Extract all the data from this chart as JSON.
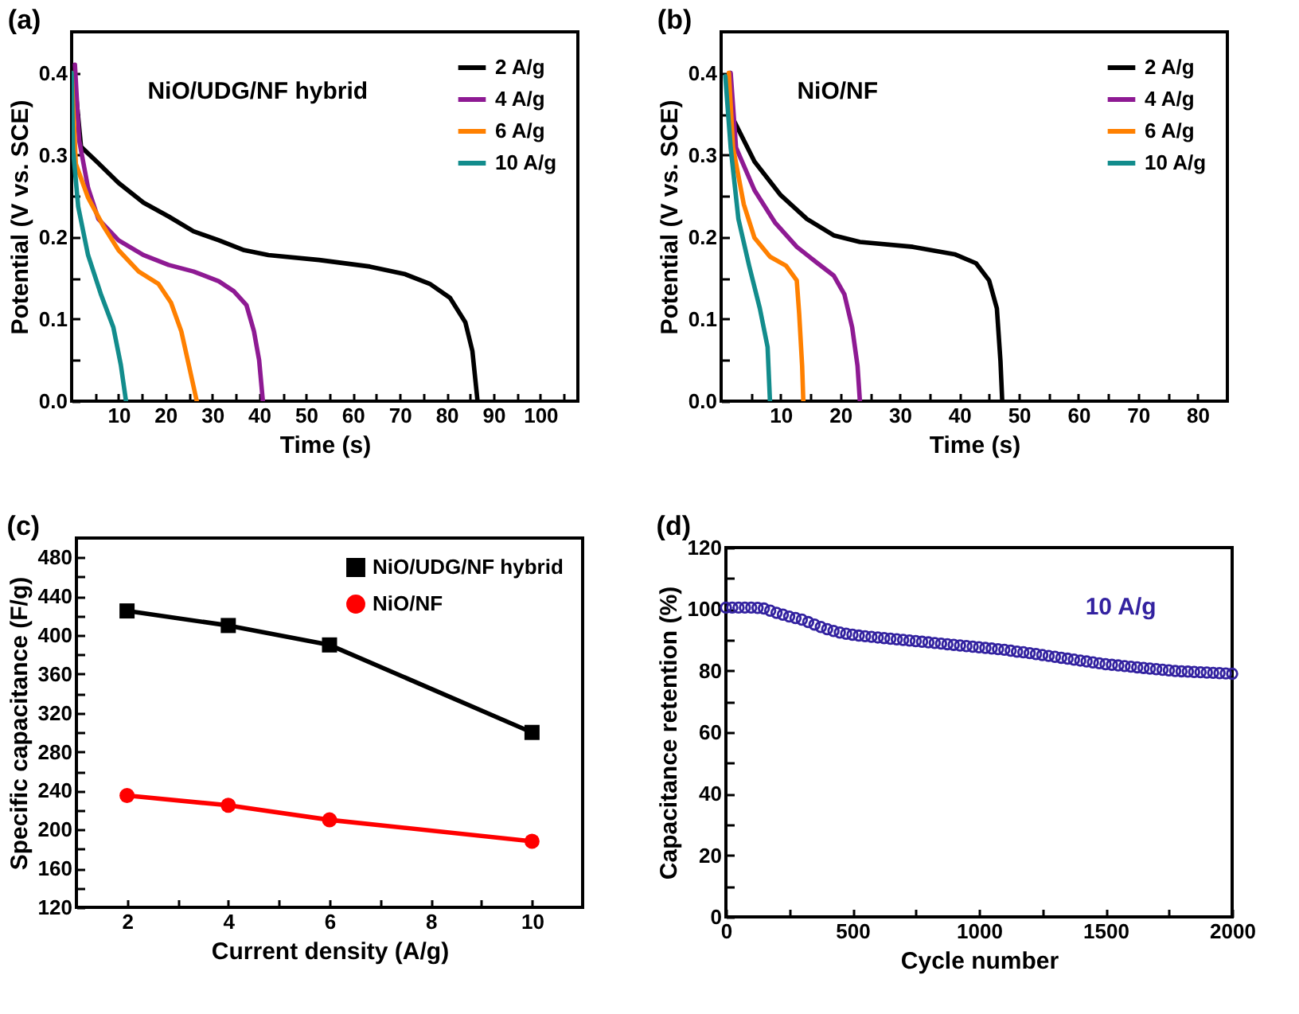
{
  "chart_data": [
    {
      "type": "line",
      "title": "(a)",
      "xlabel": "Time (s)",
      "ylabel": "Potential (V vs. SCE)",
      "xlim": [
        0,
        108
      ],
      "ylim": [
        0,
        0.45
      ],
      "xticks": [
        {
          "value": 5,
          "label": null
        },
        10,
        {
          "value": 15,
          "label": null
        },
        20,
        {
          "value": 25,
          "label": null
        },
        30,
        {
          "value": 35,
          "label": null
        },
        40,
        {
          "value": 45,
          "label": null
        },
        50,
        {
          "value": 55,
          "label": null
        },
        60,
        {
          "value": 65,
          "label": null
        },
        70,
        {
          "value": 75,
          "label": null
        },
        80,
        {
          "value": 85,
          "label": null
        },
        90,
        {
          "value": 95,
          "label": null
        },
        100,
        {
          "value": 105,
          "label": null
        }
      ],
      "yticks": [
        {
          "value": 0,
          "label": "0.0"
        },
        {
          "value": 0.05,
          "label": null
        },
        0.1,
        {
          "value": 0.15,
          "label": null
        },
        0.2,
        {
          "value": 0.25,
          "label": null
        },
        0.3,
        {
          "value": 0.35,
          "label": null
        },
        0.4
      ],
      "legend": "top right",
      "annotations": [
        "NiO/UDG/NF hybrid"
      ],
      "series": [
        {
          "name": "2 A/g",
          "color": "#000000",
          "x": [
            0.5,
            2,
            5.7,
            10,
            15.3,
            20.7,
            26,
            31.4,
            36.8,
            42,
            52.8,
            63.6,
            71,
            76.4,
            80.7,
            84,
            85.5,
            86.6
          ],
          "values": [
            0.4,
            0.31,
            0.29,
            0.266,
            0.242,
            0.225,
            0.207,
            0.196,
            0.184,
            0.178,
            0.172,
            0.164,
            0.155,
            0.143,
            0.126,
            0.096,
            0.061,
            0
          ]
        },
        {
          "name": "4 A/g",
          "color": "#8e1a93",
          "x": [
            0.7,
            1.6,
            3.5,
            5.7,
            10,
            15.3,
            20.7,
            26,
            31.4,
            34.6,
            37.3,
            38.9,
            40,
            40.8
          ],
          "values": [
            0.41,
            0.318,
            0.26,
            0.222,
            0.196,
            0.178,
            0.166,
            0.158,
            0.146,
            0.134,
            0.117,
            0.085,
            0.05,
            0
          ]
        },
        {
          "name": "6 A/g",
          "color": "#ff8000",
          "x": [
            0,
            0.9,
            3.5,
            6.8,
            10,
            14.3,
            18.5,
            21.2,
            23.4,
            25,
            26.7
          ],
          "values": [
            0.4,
            0.289,
            0.248,
            0.213,
            0.184,
            0.158,
            0.143,
            0.12,
            0.085,
            0.044,
            0
          ]
        },
        {
          "name": "10 A/g",
          "color": "#128c8c",
          "x": [
            0,
            0.3,
            1.4,
            3.5,
            6.2,
            8.9,
            10.5,
            11.6
          ],
          "values": [
            0.4,
            0.307,
            0.237,
            0.178,
            0.131,
            0.09,
            0.044,
            0
          ]
        }
      ]
    },
    {
      "type": "line",
      "title": "(b)",
      "xlabel": "Time (s)",
      "ylabel": "Potential (V vs. SCE)",
      "xlim": [
        0,
        85
      ],
      "ylim": [
        0,
        0.45
      ],
      "xticks": [
        {
          "value": 5,
          "label": null
        },
        10,
        {
          "value": 15,
          "label": null
        },
        20,
        {
          "value": 25,
          "label": null
        },
        30,
        {
          "value": 35,
          "label": null
        },
        40,
        {
          "value": 45,
          "label": null
        },
        50,
        {
          "value": 55,
          "label": null
        },
        60,
        {
          "value": 65,
          "label": null
        },
        70,
        {
          "value": 75,
          "label": null
        },
        80
      ],
      "yticks": [
        {
          "value": 0,
          "label": "0.0"
        },
        {
          "value": 0.05,
          "label": null
        },
        0.1,
        {
          "value": 0.15,
          "label": null
        },
        0.2,
        {
          "value": 0.25,
          "label": null
        },
        0.3,
        {
          "value": 0.35,
          "label": null
        },
        0.4
      ],
      "legend": "top right",
      "annotations": [
        "NiO/NF"
      ],
      "series": [
        {
          "name": "2 A/g",
          "color": "#000000",
          "x": [
            1.5,
            2,
            5.6,
            10,
            14.4,
            18.9,
            23.3,
            32.2,
            39.2,
            42.8,
            45,
            46.3,
            46.9,
            47.2
          ],
          "values": [
            0.4,
            0.344,
            0.292,
            0.251,
            0.222,
            0.202,
            0.194,
            0.188,
            0.179,
            0.168,
            0.147,
            0.113,
            0.049,
            0
          ]
        },
        {
          "name": "4 A/g",
          "color": "#8e1a93",
          "x": [
            1.6,
            2.5,
            5.6,
            9.1,
            12.7,
            16.2,
            18.9,
            20.7,
            22,
            22.9,
            23.3
          ],
          "values": [
            0.4,
            0.309,
            0.257,
            0.217,
            0.188,
            0.168,
            0.153,
            0.13,
            0.09,
            0.043,
            0
          ]
        },
        {
          "name": "6 A/g",
          "color": "#ff8000",
          "x": [
            1.3,
            2,
            3.8,
            5.6,
            8.2,
            10.9,
            12.7,
            13.1,
            13.6,
            13.8
          ],
          "values": [
            0.4,
            0.309,
            0.24,
            0.199,
            0.176,
            0.165,
            0.147,
            0.107,
            0.043,
            0
          ]
        },
        {
          "name": "10 A/g",
          "color": "#128c8c",
          "x": [
            0.7,
            1.6,
            2.9,
            4.7,
            6.5,
            7.8,
            8.2
          ],
          "values": [
            0.396,
            0.309,
            0.222,
            0.165,
            0.113,
            0.066,
            0
          ]
        }
      ]
    },
    {
      "type": "line",
      "title": "(c)",
      "xlabel": "Current density (A/g)",
      "ylabel": "Specific capacitance (F/g)",
      "xlim": [
        1,
        11
      ],
      "ylim": [
        120,
        500
      ],
      "xticks": [
        2,
        {
          "value": 3,
          "label": null
        },
        4,
        {
          "value": 5,
          "label": null
        },
        6,
        {
          "value": 7,
          "label": null
        },
        8,
        {
          "value": 9,
          "label": null
        },
        10
      ],
      "yticks": [
        120,
        {
          "value": 140,
          "label": null
        },
        160,
        {
          "value": 180,
          "label": null
        },
        200,
        {
          "value": 220,
          "label": null
        },
        240,
        {
          "value": 260,
          "label": null
        },
        280,
        {
          "value": 300,
          "label": null
        },
        320,
        {
          "value": 340,
          "label": null
        },
        360,
        {
          "value": 380,
          "label": null
        },
        400,
        {
          "value": 420,
          "label": null
        },
        440,
        {
          "value": 460,
          "label": null
        },
        480
      ],
      "legend": "top right",
      "x": [
        2,
        4,
        6,
        10
      ],
      "series": [
        {
          "name": "NiO/UDG/NF hybrid",
          "color": "#000000",
          "marker": "square",
          "values": [
            425,
            410,
            390,
            300
          ]
        },
        {
          "name": "NiO/NF",
          "color": "#ff0000",
          "marker": "circle",
          "values": [
            235,
            225,
            210,
            188
          ]
        }
      ]
    },
    {
      "type": "scatter",
      "title": "(d)",
      "xlabel": "Cycle number",
      "ylabel": "Capacitance retention (%)",
      "xlim": [
        0,
        2000
      ],
      "ylim": [
        0,
        120
      ],
      "xticks": [
        0,
        {
          "value": 250,
          "label": null
        },
        500,
        {
          "value": 750,
          "label": null
        },
        1000,
        {
          "value": 1250,
          "label": null
        },
        1500,
        {
          "value": 1750,
          "label": null
        },
        2000
      ],
      "yticks": [
        0,
        {
          "value": 10,
          "label": null
        },
        20,
        {
          "value": 30,
          "label": null
        },
        40,
        {
          "value": 50,
          "label": null
        },
        60,
        {
          "value": 70,
          "label": null
        },
        80,
        {
          "value": 90,
          "label": null
        },
        100,
        {
          "value": 110,
          "label": null
        },
        120
      ],
      "marker": "circle",
      "annotations": [
        "10 A/g"
      ],
      "x": [
        0,
        25,
        50,
        75,
        100,
        125,
        150,
        175,
        200,
        225,
        250,
        275,
        300,
        325,
        350,
        375,
        400,
        425,
        450,
        475,
        500,
        525,
        550,
        575,
        600,
        625,
        650,
        675,
        700,
        725,
        750,
        775,
        800,
        825,
        850,
        875,
        900,
        925,
        950,
        975,
        1000,
        1025,
        1050,
        1075,
        1100,
        1125,
        1150,
        1175,
        1200,
        1225,
        1250,
        1275,
        1300,
        1325,
        1350,
        1375,
        1400,
        1425,
        1450,
        1475,
        1500,
        1525,
        1550,
        1575,
        1600,
        1625,
        1650,
        1675,
        1700,
        1725,
        1750,
        1775,
        1800,
        1825,
        1850,
        1875,
        1900,
        1925,
        1950,
        1975,
        2000
      ],
      "series": [
        {
          "color": "#3322a0",
          "values": [
            100.5,
            100.5,
            100.5,
            100.5,
            100.5,
            100.4,
            100.2,
            99.5,
            98.8,
            98.2,
            97.6,
            97.1,
            96.6,
            95.8,
            95,
            94.2,
            93.5,
            92.9,
            92.4,
            92,
            91.7,
            91.4,
            91.2,
            91,
            90.8,
            90.6,
            90.4,
            90.2,
            90,
            89.8,
            89.6,
            89.4,
            89.2,
            89,
            88.8,
            88.6,
            88.4,
            88.2,
            88,
            87.8,
            87.6,
            87.4,
            87.2,
            87,
            86.8,
            86.5,
            86.2,
            86,
            85.7,
            85.4,
            85.1,
            84.8,
            84.5,
            84.2,
            83.9,
            83.6,
            83.3,
            83,
            82.7,
            82.4,
            82.1,
            81.9,
            81.7,
            81.5,
            81.3,
            81.1,
            80.9,
            80.7,
            80.5,
            80.3,
            80.1,
            79.9,
            79.8,
            79.7,
            79.6,
            79.5,
            79.4,
            79.3,
            79.2,
            79.1,
            79
          ]
        }
      ]
    }
  ]
}
